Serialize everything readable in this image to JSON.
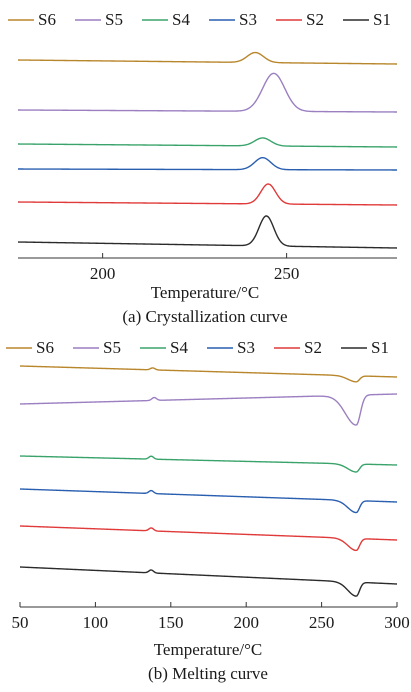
{
  "chart_data": [
    {
      "type": "line",
      "title": "",
      "caption": "(a) Crystallization curve",
      "xlabel": "Temperature/°C",
      "ylabel": "",
      "xlim": [
        177,
        280
      ],
      "xticks": [
        200,
        250
      ],
      "y_ticks_shown": false,
      "grid": false,
      "legend_position": "top",
      "series": [
        {
          "name": "S6",
          "color": "#b8862b",
          "baseline_start": 60,
          "baseline_end": 64,
          "peak_x": 241.5,
          "peak_height": 10,
          "peak_width": 2.2
        },
        {
          "name": "S5",
          "color": "#9b7fc0",
          "baseline_start": 110,
          "baseline_end": 112,
          "peak_x": 246.5,
          "peak_height": 38,
          "peak_width": 3.0
        },
        {
          "name": "S4",
          "color": "#3aa36b",
          "baseline_start": 144,
          "baseline_end": 147,
          "peak_x": 243.5,
          "peak_height": 8,
          "peak_width": 2.2
        },
        {
          "name": "S3",
          "color": "#2a5fb0",
          "baseline_start": 169,
          "baseline_end": 170,
          "peak_x": 243.5,
          "peak_height": 12,
          "peak_width": 2.2
        },
        {
          "name": "S2",
          "color": "#e03a3a",
          "baseline_start": 202,
          "baseline_end": 205,
          "peak_x": 245.0,
          "peak_height": 20,
          "peak_width": 2.0
        },
        {
          "name": "S1",
          "color": "#2b2b2b",
          "baseline_start": 242,
          "baseline_end": 248,
          "peak_x": 244.5,
          "peak_height": 30,
          "peak_width": 2.0
        }
      ]
    },
    {
      "type": "line",
      "title": "",
      "caption": "(b) Melting curve",
      "xlabel": "Temperature/°C",
      "ylabel": "",
      "xlim": [
        50,
        300
      ],
      "xticks": [
        50,
        100,
        150,
        200,
        250,
        300
      ],
      "y_ticks_shown": false,
      "grid": false,
      "legend_position": "top",
      "series": [
        {
          "name": "S6",
          "color": "#b8862b",
          "baseline_start": 366,
          "baseline_end": 377,
          "bump_x": 138,
          "bump_height": 2,
          "dip_x": 273,
          "dip_depth": 6,
          "dip_width": 3.5
        },
        {
          "name": "S5",
          "color": "#9b7fc0",
          "baseline_start": 404,
          "baseline_end": 394,
          "bump_x": 139,
          "bump_height": 3,
          "dip_x": 273,
          "dip_depth": 30,
          "dip_width": 4.5
        },
        {
          "name": "S4",
          "color": "#3aa36b",
          "baseline_start": 456,
          "baseline_end": 465,
          "bump_x": 137,
          "bump_height": 3,
          "dip_x": 273,
          "dip_depth": 8,
          "dip_width": 3.5
        },
        {
          "name": "S3",
          "color": "#2a5fb0",
          "baseline_start": 489,
          "baseline_end": 502,
          "bump_x": 137,
          "bump_height": 3,
          "dip_x": 273,
          "dip_depth": 12,
          "dip_width": 3.5
        },
        {
          "name": "S2",
          "color": "#e03a3a",
          "baseline_start": 526,
          "baseline_end": 540,
          "bump_x": 137,
          "bump_height": 3,
          "dip_x": 273,
          "dip_depth": 12,
          "dip_width": 3.5
        },
        {
          "name": "S1",
          "color": "#2b2b2b",
          "baseline_start": 567,
          "baseline_end": 584,
          "bump_x": 137,
          "bump_height": 3,
          "dip_x": 273,
          "dip_depth": 14,
          "dip_width": 3.5
        }
      ]
    }
  ]
}
